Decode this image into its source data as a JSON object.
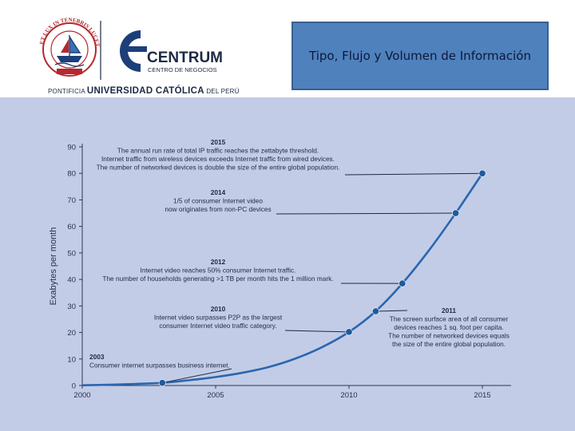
{
  "slide": {
    "title": "Tipo, Flujo y Volumen de Información",
    "logo": {
      "brand": "CENTRUM",
      "brand_sub": "CENTRO DE NEGOCIOS",
      "seal_text": "ET LUX IN TENEBRIS LUCET",
      "university_prefix": "PONTIFICIA",
      "university_name": "UNIVERSIDAD CATÓLICA",
      "university_suffix": "DEL PERÚ"
    }
  },
  "colors": {
    "background": "#c3cce6",
    "title_box": "#4f81bd",
    "line": "#2a66b0",
    "marker": "#1f5a9e",
    "brand": "#1c3f7a",
    "crest": "#b5282e"
  },
  "chart_data": {
    "type": "line",
    "x": [
      2000,
      2001,
      2002,
      2003,
      2004,
      2005,
      2006,
      2007,
      2008,
      2009,
      2010,
      2011,
      2012,
      2013,
      2014,
      2015
    ],
    "series": [
      {
        "values": [
          0.1,
          0.3,
          0.6,
          1.0,
          2.0,
          3.2,
          4.8,
          7.0,
          10.2,
          14.5,
          20.2,
          28.0,
          38.5,
          51.0,
          65.0,
          80.0
        ]
      }
    ],
    "markers": [
      {
        "x": 2003,
        "y": 1.0
      },
      {
        "x": 2010,
        "y": 20.2
      },
      {
        "x": 2011,
        "y": 28.0
      },
      {
        "x": 2012,
        "y": 38.5
      },
      {
        "x": 2014,
        "y": 65.0
      },
      {
        "x": 2015,
        "y": 80.0
      }
    ],
    "xlim": [
      2000,
      2015
    ],
    "ylim": [
      0,
      90
    ],
    "xticks": [
      "2000",
      "2005",
      "2010",
      "2015"
    ],
    "yticks": [
      "0",
      "10",
      "20",
      "30",
      "40",
      "50",
      "60",
      "70",
      "80",
      "90"
    ],
    "ylabel": "Exabytes per month",
    "xlabel": "",
    "annotations": [
      {
        "year": "2015",
        "lines": [
          "The annual run rate of total IP traffic reaches the zettabyte threshold.",
          "Internet traffic from wireless devices exceeds Internet traffic from wired devices.",
          "The number of networked devices is double the size of the entire global population."
        ]
      },
      {
        "year": "2014",
        "lines": [
          "1/5 of consumer Internet video",
          "now originates from non-PC devices"
        ]
      },
      {
        "year": "2012",
        "lines": [
          "Internet video reaches 50% consumer Internet traffic.",
          "The number of households generating >1 TB per month hits the 1 million mark."
        ]
      },
      {
        "year": "2010",
        "lines": [
          "Internet video surpasses P2P as the largest",
          "consumer Internet video traffic category."
        ]
      },
      {
        "year": "2011",
        "lines": [
          "The screen surface area of all consumer",
          "devices reaches 1 sq. foot per capita.",
          "The number of networked devices equals",
          "the size of the entire global population."
        ]
      },
      {
        "year": "2003",
        "lines": [
          "Consumer internet surpasses business internet."
        ]
      }
    ]
  }
}
